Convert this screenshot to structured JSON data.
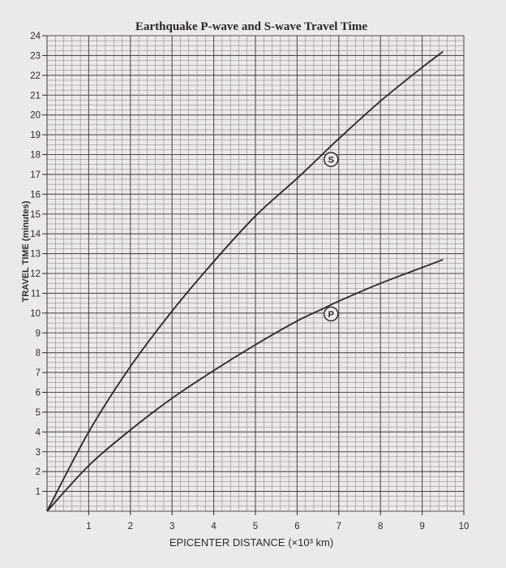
{
  "chart_data": {
    "type": "line",
    "title": "Earthquake P-wave and S-wave Travel Time",
    "xlabel": "EPICENTER DISTANCE (×10³ km)",
    "ylabel": "TRAVEL TIME (minutes)",
    "xlim": [
      0,
      10
    ],
    "ylim": [
      0,
      24
    ],
    "grid": true,
    "x_ticks": [
      "1",
      "2",
      "3",
      "4",
      "5",
      "6",
      "7",
      "8",
      "9",
      "10"
    ],
    "y_ticks": [
      "1",
      "2",
      "3",
      "4",
      "5",
      "6",
      "7",
      "8",
      "9",
      "10",
      "11",
      "12",
      "13",
      "14",
      "15",
      "16",
      "17",
      "18",
      "19",
      "20",
      "21",
      "22",
      "23",
      "24"
    ],
    "series": [
      {
        "name": "S",
        "x": [
          0,
          1,
          2,
          3,
          4,
          5,
          6,
          6.6,
          7,
          8,
          9,
          9.5
        ],
        "y": [
          0,
          4.0,
          7.3,
          10.1,
          12.6,
          14.9,
          16.8,
          18.0,
          18.8,
          20.7,
          22.4,
          23.2
        ]
      },
      {
        "name": "P",
        "x": [
          0,
          1,
          2,
          3,
          4,
          5,
          6,
          6.6,
          7,
          8,
          9,
          9.5
        ],
        "y": [
          0,
          2.3,
          4.1,
          5.7,
          7.1,
          8.4,
          9.6,
          10.2,
          10.6,
          11.5,
          12.3,
          12.7
        ]
      }
    ]
  }
}
